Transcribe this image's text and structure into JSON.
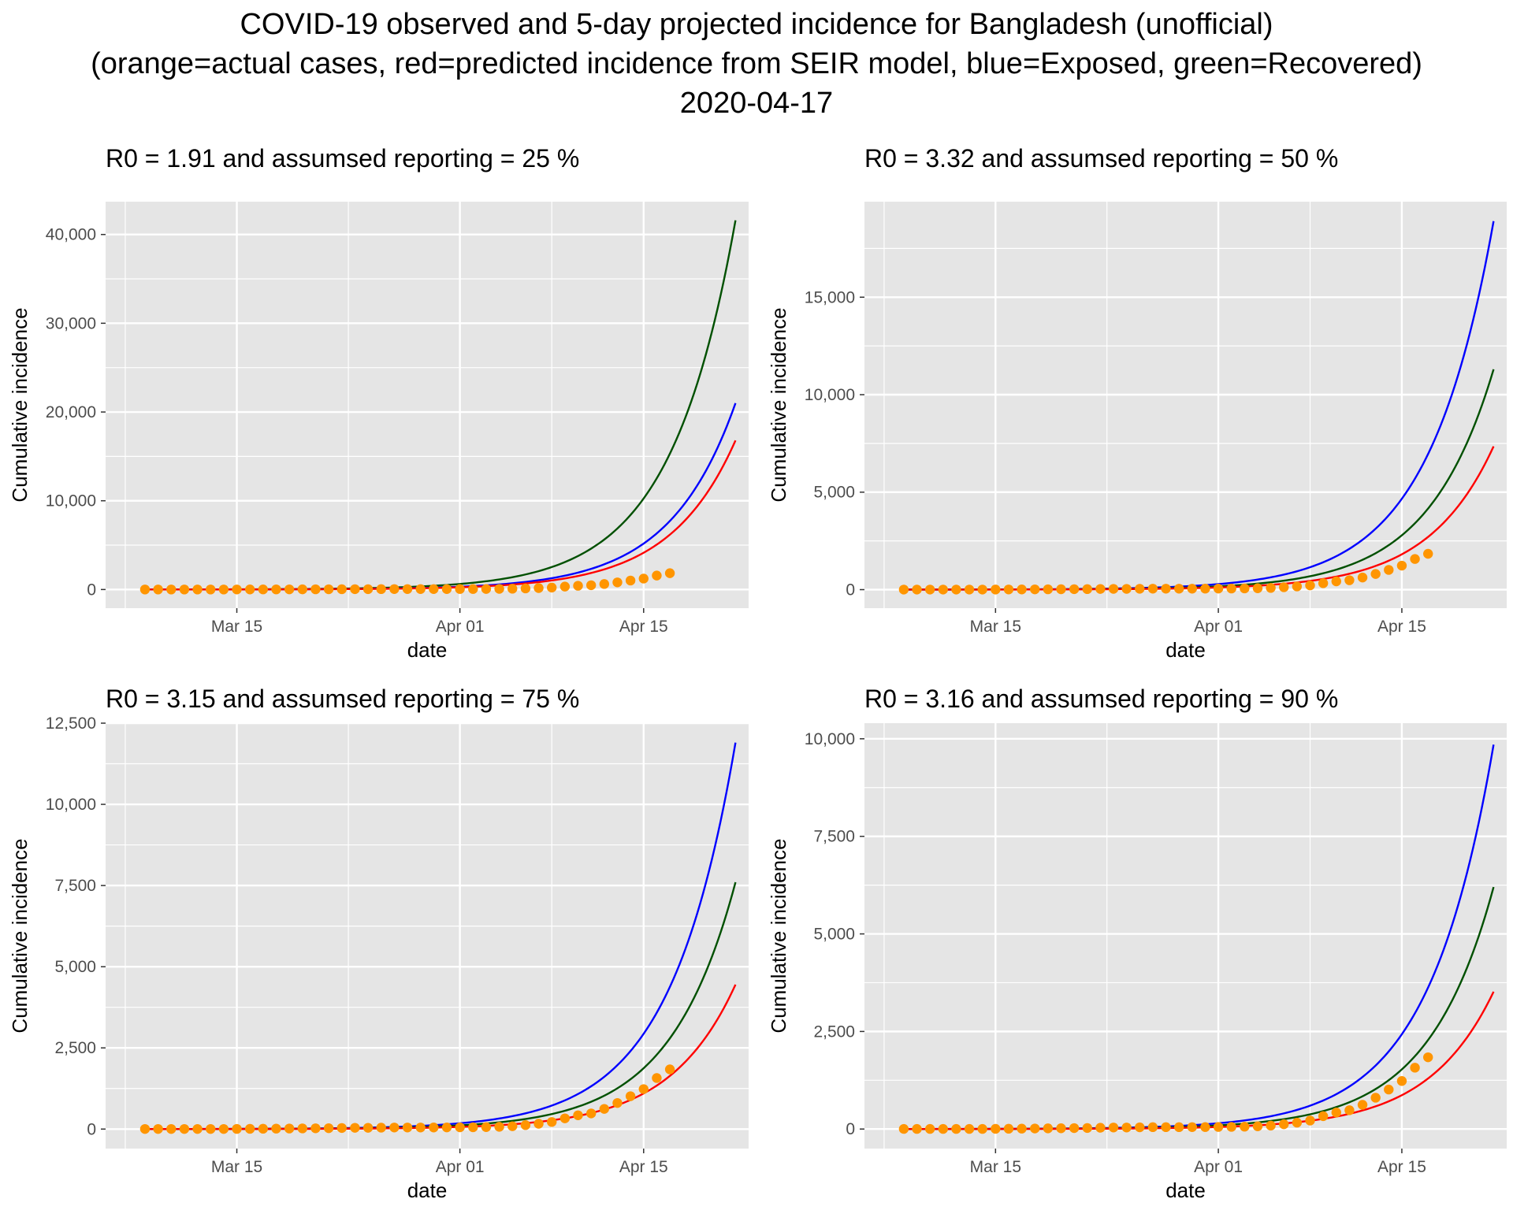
{
  "page": {
    "title_line1": "COVID-19 observed and 5-day projected incidence for Bangladesh (unofficial)",
    "title_line2": "(orange=actual cases, red=predicted incidence from SEIR model, blue=Exposed, green=Recovered)",
    "title_line3": "2020-04-17"
  },
  "colors": {
    "actual": "#ff9500",
    "predicted": "#ff0000",
    "exposed": "#0000ff",
    "recovered": "#005000",
    "panel_bg": "#e5e5e5",
    "grid": "#ffffff"
  },
  "chart_data": [
    {
      "type": "line",
      "title": "R0 = 1.91 and assumsed reporting = 25 %",
      "xlabel": "date",
      "ylabel": "Cumulative incidence",
      "x_tick_dates": [
        "2020-03-15",
        "2020-04-01",
        "2020-04-15"
      ],
      "x_tick_labels": [
        "Mar 15",
        "Apr 01",
        "Apr 15"
      ],
      "xlim": [
        "2020-03-05",
        "2020-04-23"
      ],
      "y_ticks": [
        0,
        10000,
        20000,
        30000,
        40000
      ],
      "y_tick_labels": [
        "0",
        "10,000",
        "20,000",
        "30,000",
        "40,000"
      ],
      "ylim": [
        -2100,
        43700
      ],
      "grid": true,
      "model_start": "2020-03-08",
      "model_end": "2020-04-22",
      "series": [
        {
          "name": "Recovered",
          "color": "green",
          "anchor_date": "2020-04-22",
          "end_value": 41600,
          "growth_rate": 0.2
        },
        {
          "name": "Exposed",
          "color": "blue",
          "anchor_date": "2020-04-22",
          "end_value": 21000,
          "growth_rate": 0.2
        },
        {
          "name": "Predicted incidence",
          "color": "red",
          "anchor_date": "2020-04-22",
          "end_value": 16800,
          "growth_rate": 0.2
        }
      ]
    },
    {
      "type": "line",
      "title": "R0 = 3.32 and assumsed reporting = 50 %",
      "xlabel": "date",
      "ylabel": "Cumulative incidence",
      "x_tick_dates": [
        "2020-03-15",
        "2020-04-01",
        "2020-04-15"
      ],
      "x_tick_labels": [
        "Mar 15",
        "Apr 01",
        "Apr 15"
      ],
      "xlim": [
        "2020-03-05",
        "2020-04-23"
      ],
      "y_ticks": [
        0,
        5000,
        10000,
        15000
      ],
      "y_tick_labels": [
        "0",
        "5,000",
        "10,000",
        "15,000"
      ],
      "ylim": [
        -950,
        19900
      ],
      "grid": true,
      "model_start": "2020-03-08",
      "model_end": "2020-04-22",
      "series": [
        {
          "name": "Exposed",
          "color": "blue",
          "anchor_date": "2020-04-22",
          "end_value": 18900,
          "growth_rate": 0.2
        },
        {
          "name": "Recovered",
          "color": "green",
          "anchor_date": "2020-04-22",
          "end_value": 11300,
          "growth_rate": 0.2
        },
        {
          "name": "Predicted incidence",
          "color": "red",
          "anchor_date": "2020-04-22",
          "end_value": 7350,
          "growth_rate": 0.2
        }
      ]
    },
    {
      "type": "line",
      "title": "R0 = 3.15 and assumsed reporting = 75 %",
      "xlabel": "date",
      "ylabel": "Cumulative incidence",
      "x_tick_dates": [
        "2020-03-15",
        "2020-04-01",
        "2020-04-15"
      ],
      "x_tick_labels": [
        "Mar 15",
        "Apr 01",
        "Apr 15"
      ],
      "xlim": [
        "2020-03-05",
        "2020-04-23"
      ],
      "y_ticks": [
        0,
        2500,
        5000,
        7500,
        10000,
        12500
      ],
      "y_tick_labels": [
        "0",
        "2,500",
        "5,000",
        "7,500",
        "10,000",
        "12,500"
      ],
      "ylim": [
        -600,
        12500
      ],
      "grid": true,
      "model_start": "2020-03-08",
      "model_end": "2020-04-22",
      "series": [
        {
          "name": "Exposed",
          "color": "blue",
          "anchor_date": "2020-04-22",
          "end_value": 11900,
          "growth_rate": 0.2
        },
        {
          "name": "Recovered",
          "color": "green",
          "anchor_date": "2020-04-22",
          "end_value": 7600,
          "growth_rate": 0.2
        },
        {
          "name": "Predicted incidence",
          "color": "red",
          "anchor_date": "2020-04-22",
          "end_value": 4450,
          "growth_rate": 0.2
        }
      ]
    },
    {
      "type": "line",
      "title": "R0 = 3.16 and assumsed reporting = 90 %",
      "xlabel": "date",
      "ylabel": "Cumulative incidence",
      "x_tick_dates": [
        "2020-03-15",
        "2020-04-01",
        "2020-04-15"
      ],
      "x_tick_labels": [
        "Mar 15",
        "Apr 01",
        "Apr 15"
      ],
      "xlim": [
        "2020-03-05",
        "2020-04-23"
      ],
      "y_ticks": [
        0,
        2500,
        5000,
        7500,
        10000
      ],
      "y_tick_labels": [
        "0",
        "2,500",
        "5,000",
        "7,500",
        "10,000"
      ],
      "ylim": [
        -500,
        10400
      ],
      "grid": true,
      "model_start": "2020-03-08",
      "model_end": "2020-04-22",
      "series": [
        {
          "name": "Exposed",
          "color": "blue",
          "anchor_date": "2020-04-22",
          "end_value": 9850,
          "growth_rate": 0.2
        },
        {
          "name": "Recovered",
          "color": "green",
          "anchor_date": "2020-04-22",
          "end_value": 6200,
          "growth_rate": 0.2
        },
        {
          "name": "Predicted incidence",
          "color": "red",
          "anchor_date": "2020-04-22",
          "end_value": 3520,
          "growth_rate": 0.2
        }
      ]
    }
  ],
  "actual_cases": {
    "dates": [
      "2020-03-08",
      "2020-03-09",
      "2020-03-10",
      "2020-03-11",
      "2020-03-12",
      "2020-03-13",
      "2020-03-14",
      "2020-03-15",
      "2020-03-16",
      "2020-03-17",
      "2020-03-18",
      "2020-03-19",
      "2020-03-20",
      "2020-03-21",
      "2020-03-22",
      "2020-03-23",
      "2020-03-24",
      "2020-03-25",
      "2020-03-26",
      "2020-03-27",
      "2020-03-28",
      "2020-03-29",
      "2020-03-30",
      "2020-03-31",
      "2020-04-01",
      "2020-04-02",
      "2020-04-03",
      "2020-04-04",
      "2020-04-05",
      "2020-04-06",
      "2020-04-07",
      "2020-04-08",
      "2020-04-09",
      "2020-04-10",
      "2020-04-11",
      "2020-04-12",
      "2020-04-13",
      "2020-04-14",
      "2020-04-15",
      "2020-04-16",
      "2020-04-17"
    ],
    "values": [
      3,
      3,
      3,
      3,
      3,
      3,
      3,
      5,
      8,
      10,
      14,
      17,
      20,
      24,
      27,
      33,
      39,
      39,
      44,
      48,
      48,
      48,
      49,
      51,
      54,
      56,
      61,
      70,
      88,
      123,
      164,
      218,
      330,
      424,
      482,
      621,
      803,
      1012,
      1231,
      1572,
      1838
    ]
  }
}
